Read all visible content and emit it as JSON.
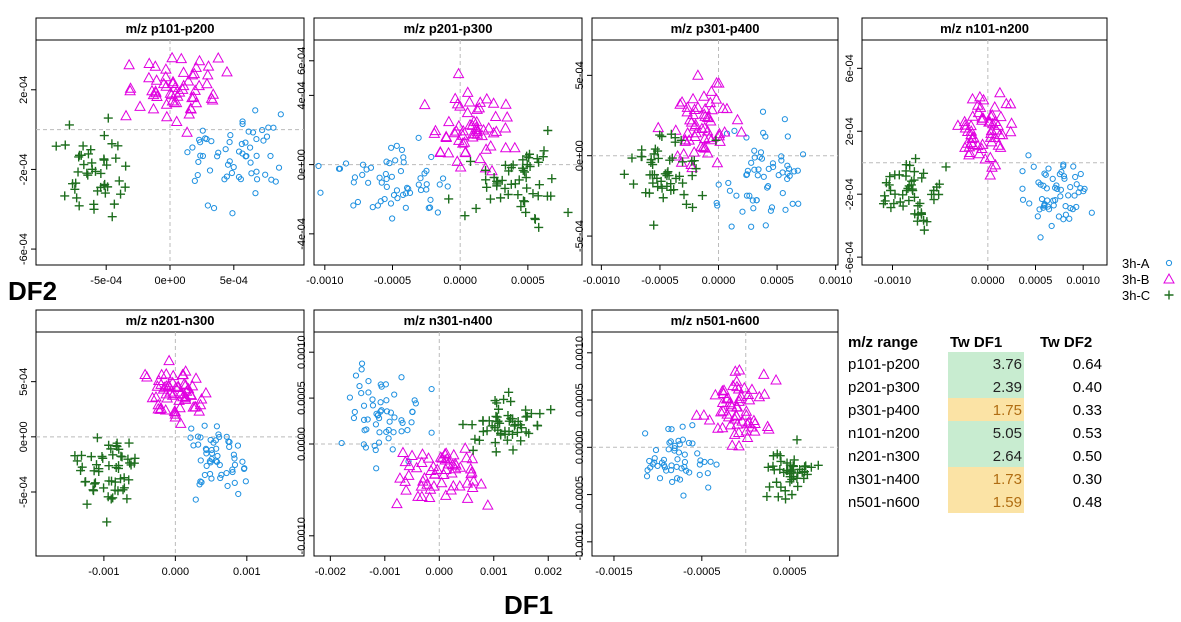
{
  "figure": {
    "xlabel": "DF1",
    "ylabel": "DF2",
    "colors": {
      "3h-A": "#1e90e0",
      "3h-B": "#e000e0",
      "3h-C": "#1e6e1e"
    }
  },
  "legend": [
    {
      "label": "3h-A",
      "marker": "circle",
      "color": "#1e90e0"
    },
    {
      "label": "3h-B",
      "marker": "triangle",
      "color": "#e000e0"
    },
    {
      "label": "3h-C",
      "marker": "plus",
      "color": "#1e6e1e"
    }
  ],
  "table": {
    "headers": [
      "m/z range",
      "Tw DF1",
      "Tw DF2"
    ],
    "highlight_colors": {
      "green": "#c8ecd0",
      "yellow": "#fbe3a5"
    },
    "rows": [
      {
        "range": "p101-p200",
        "tw_df1": "3.76",
        "tw_df2": "0.64",
        "highlight": "green"
      },
      {
        "range": "p201-p300",
        "tw_df1": "2.39",
        "tw_df2": "0.40",
        "highlight": "green"
      },
      {
        "range": "p301-p400",
        "tw_df1": "1.75",
        "tw_df2": "0.33",
        "highlight": "yellow"
      },
      {
        "range": "n101-n200",
        "tw_df1": "5.05",
        "tw_df2": "0.53",
        "highlight": "green"
      },
      {
        "range": "n201-n300",
        "tw_df1": "2.64",
        "tw_df2": "0.50",
        "highlight": "green"
      },
      {
        "range": "n301-n400",
        "tw_df1": "1.73",
        "tw_df2": "0.30",
        "highlight": "yellow"
      },
      {
        "range": "n501-n600",
        "tw_df1": "1.59",
        "tw_df2": "0.48",
        "highlight": "yellow"
      }
    ]
  },
  "chart_data": [
    {
      "type": "scatter",
      "title": "m/z p101-p200",
      "xlim": [
        -0.00105,
        0.00105
      ],
      "ylim": [
        -0.00068,
        0.00045
      ],
      "xticks": [
        -0.0005,
        0,
        0.0005
      ],
      "xtick_labels": [
        "-5e-04",
        "0e+00",
        "5e-04"
      ],
      "yticks": [
        -0.0006,
        -0.0002,
        0.0002
      ],
      "ytick_labels": [
        "-6e-04",
        "-2e-04",
        "2e-04"
      ],
      "series": [
        {
          "name": "3h-A",
          "center": [
            0.0005,
            -0.0001
          ],
          "spread": [
            0.00025,
            0.00016
          ],
          "n": 60
        },
        {
          "name": "3h-B",
          "center": [
            0.0,
            0.0002
          ],
          "spread": [
            0.00025,
            0.00012
          ],
          "n": 60
        },
        {
          "name": "3h-C",
          "center": [
            -0.0006,
            -0.0002
          ],
          "spread": [
            0.0002,
            0.00014
          ],
          "n": 45
        }
      ]
    },
    {
      "type": "scatter",
      "title": "m/z p201-p300",
      "xlim": [
        -0.00108,
        0.0009
      ],
      "ylim": [
        -0.00058,
        0.00072
      ],
      "xticks": [
        -0.001,
        -0.0005,
        0,
        0.0005
      ],
      "xtick_labels": [
        "-0.0010",
        "-0.0005",
        "0.0000",
        "0.0005"
      ],
      "yticks": [
        -0.0004,
        0,
        0.0004,
        0.0006
      ],
      "ytick_labels": [
        "-4e-04",
        "0e+00",
        "4e-04",
        "6e-04"
      ],
      "series": [
        {
          "name": "3h-A",
          "center": [
            -0.0005,
            -0.0001
          ],
          "spread": [
            0.0003,
            0.00015
          ],
          "n": 60
        },
        {
          "name": "3h-B",
          "center": [
            0.0001,
            0.0002
          ],
          "spread": [
            0.0002,
            0.00017
          ],
          "n": 60
        },
        {
          "name": "3h-C",
          "center": [
            0.0004,
            -0.0001
          ],
          "spread": [
            0.00025,
            0.00016
          ],
          "n": 55
        }
      ]
    },
    {
      "type": "scatter",
      "title": "m/z p301-p400",
      "xlim": [
        -0.00108,
        0.00102
      ],
      "ylim": [
        -0.00068,
        0.00072
      ],
      "xticks": [
        -0.001,
        -0.0005,
        0,
        0.0005,
        0.001
      ],
      "xtick_labels": [
        "-0.0010",
        "-0.0005",
        "0.0000",
        "0.0005",
        "0.0010"
      ],
      "yticks": [
        -0.0005,
        0,
        0.0005
      ],
      "ytick_labels": [
        "-5e-04",
        "0e+00",
        "5e-04"
      ],
      "series": [
        {
          "name": "3h-A",
          "center": [
            0.0004,
            -0.0001
          ],
          "spread": [
            0.00025,
            0.00022
          ],
          "n": 60
        },
        {
          "name": "3h-B",
          "center": [
            -0.0001,
            0.0002
          ],
          "spread": [
            0.00025,
            0.00018
          ],
          "n": 60
        },
        {
          "name": "3h-C",
          "center": [
            -0.0005,
            -0.0001
          ],
          "spread": [
            0.00025,
            0.0002
          ],
          "n": 55
        }
      ]
    },
    {
      "type": "scatter",
      "title": "m/z n101-n200",
      "xlim": [
        -0.00132,
        0.00125
      ],
      "ylim": [
        -0.00065,
        0.00078
      ],
      "xticks": [
        -0.001,
        0,
        0.0005,
        0.001
      ],
      "xtick_labels": [
        "-0.0010",
        "0.0000",
        "0.0005",
        "0.0010"
      ],
      "yticks": [
        -0.0006,
        -0.0002,
        0.0002,
        0.0006
      ],
      "ytick_labels": [
        "-6e-04",
        "-2e-04",
        "2e-04",
        "6e-04"
      ],
      "series": [
        {
          "name": "3h-A",
          "center": [
            0.0007,
            -0.0002
          ],
          "spread": [
            0.00022,
            0.00015
          ],
          "n": 60
        },
        {
          "name": "3h-B",
          "center": [
            0.0,
            0.0002
          ],
          "spread": [
            0.0002,
            0.00016
          ],
          "n": 60
        },
        {
          "name": "3h-C",
          "center": [
            -0.0008,
            -0.0002
          ],
          "spread": [
            0.00022,
            0.00016
          ],
          "n": 50
        }
      ]
    },
    {
      "type": "scatter",
      "title": "m/z n201-n300",
      "xlim": [
        -0.00195,
        0.0018
      ],
      "ylim": [
        -0.00108,
        0.00095
      ],
      "xticks": [
        -0.001,
        0,
        0.001
      ],
      "xtick_labels": [
        "-0.001",
        "0.000",
        "0.001"
      ],
      "yticks": [
        -0.0005,
        0,
        0.0005
      ],
      "ytick_labels": [
        "-5e-04",
        "0e+00",
        "5e-04"
      ],
      "series": [
        {
          "name": "3h-A",
          "center": [
            0.0006,
            -0.0002
          ],
          "spread": [
            0.0003,
            0.0002
          ],
          "n": 55
        },
        {
          "name": "3h-B",
          "center": [
            0.0,
            0.0004
          ],
          "spread": [
            0.0003,
            0.00018
          ],
          "n": 60
        },
        {
          "name": "3h-C",
          "center": [
            -0.0009,
            -0.0003
          ],
          "spread": [
            0.0003,
            0.00025
          ],
          "n": 55
        }
      ]
    },
    {
      "type": "scatter",
      "title": "m/z n301-n400",
      "xlim": [
        -0.0023,
        0.00262
      ],
      "ylim": [
        -0.00122,
        0.00122
      ],
      "xticks": [
        -0.002,
        -0.001,
        0,
        0.001,
        0.002
      ],
      "xtick_labels": [
        "-0.002",
        "-0.001",
        "0.000",
        "0.001",
        "0.002"
      ],
      "yticks": [
        -0.001,
        0,
        0.0005,
        0.001
      ],
      "ytick_labels": [
        "-0.0010",
        "0.0000",
        "0.0005",
        "0.0010"
      ],
      "series": [
        {
          "name": "3h-A",
          "center": [
            -0.001,
            0.0003
          ],
          "spread": [
            0.0005,
            0.0003
          ],
          "n": 60
        },
        {
          "name": "3h-B",
          "center": [
            0.0,
            -0.0003
          ],
          "spread": [
            0.0006,
            0.00025
          ],
          "n": 60
        },
        {
          "name": "3h-C",
          "center": [
            0.0013,
            0.0002
          ],
          "spread": [
            0.0005,
            0.00025
          ],
          "n": 55
        }
      ]
    },
    {
      "type": "scatter",
      "title": "m/z n501-n600",
      "xlim": [
        -0.00175,
        0.00105
      ],
      "ylim": [
        -0.00115,
        0.00122
      ],
      "xticks": [
        -0.0015,
        -0.0005,
        0.0005
      ],
      "xtick_labels": [
        "-0.0015",
        "-0.0005",
        "0.0005"
      ],
      "yticks": [
        -0.001,
        -0.0005,
        0,
        0.0005,
        0.001
      ],
      "ytick_labels": [
        "-0.0010",
        "-0.0005",
        "0.0000",
        "0.0005",
        "0.0010"
      ],
      "series": [
        {
          "name": "3h-A",
          "center": [
            -0.0008,
            -0.0001
          ],
          "spread": [
            0.0003,
            0.00025
          ],
          "n": 55
        },
        {
          "name": "3h-B",
          "center": [
            -0.0001,
            0.0004
          ],
          "spread": [
            0.00025,
            0.00025
          ],
          "n": 60
        },
        {
          "name": "3h-C",
          "center": [
            0.0005,
            -0.0003
          ],
          "spread": [
            0.0002,
            0.0002
          ],
          "n": 45
        }
      ]
    }
  ]
}
